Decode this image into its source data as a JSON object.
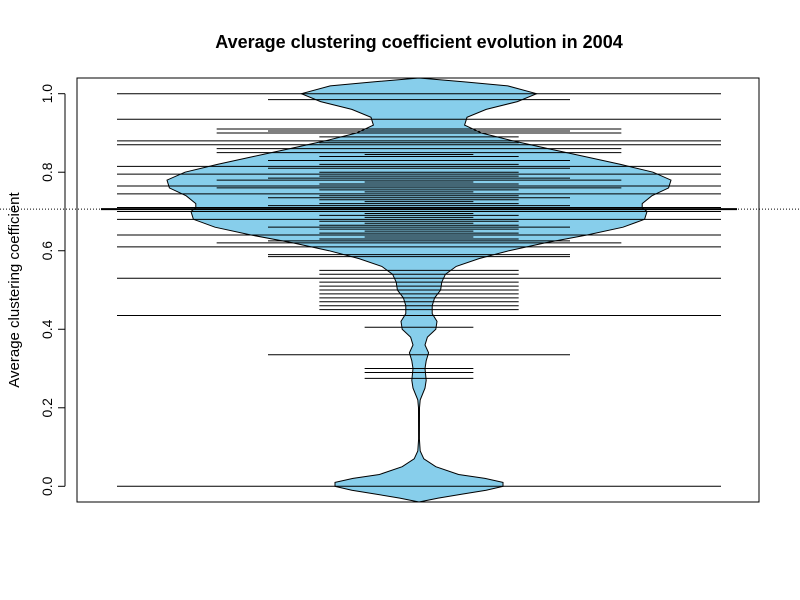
{
  "chart_data": {
    "type": "beanplot",
    "title": "Average clustering coefficient evolution in 2004",
    "xlabel": "",
    "ylabel": "Average clustering coefficient",
    "ylim": [
      -0.04,
      1.04
    ],
    "yticks": [
      0.0,
      0.2,
      0.4,
      0.6,
      0.8,
      1.0
    ],
    "ytick_labels": [
      "0.0",
      "0.2",
      "0.4",
      "0.6",
      "0.8",
      "1.0"
    ],
    "reference_line": 0.706,
    "fill_color": "#87CEEB",
    "outline_color": "#000000",
    "density_profile": [
      {
        "y": -0.04,
        "w": 0.0
      },
      {
        "y": -0.03,
        "w": 0.16
      },
      {
        "y": -0.02,
        "w": 0.36
      },
      {
        "y": -0.01,
        "w": 0.56
      },
      {
        "y": 0.0,
        "w": 0.7
      },
      {
        "y": 0.01,
        "w": 0.7
      },
      {
        "y": 0.02,
        "w": 0.55
      },
      {
        "y": 0.03,
        "w": 0.33
      },
      {
        "y": 0.05,
        "w": 0.14
      },
      {
        "y": 0.07,
        "w": 0.04
      },
      {
        "y": 0.09,
        "w": 0.01
      },
      {
        "y": 0.12,
        "w": 0.003
      },
      {
        "y": 0.2,
        "w": 0.004
      },
      {
        "y": 0.22,
        "w": 0.01
      },
      {
        "y": 0.25,
        "w": 0.05
      },
      {
        "y": 0.27,
        "w": 0.06
      },
      {
        "y": 0.3,
        "w": 0.05
      },
      {
        "y": 0.32,
        "w": 0.06
      },
      {
        "y": 0.34,
        "w": 0.08
      },
      {
        "y": 0.36,
        "w": 0.05
      },
      {
        "y": 0.38,
        "w": 0.07
      },
      {
        "y": 0.4,
        "w": 0.14
      },
      {
        "y": 0.42,
        "w": 0.15
      },
      {
        "y": 0.44,
        "w": 0.11
      },
      {
        "y": 0.46,
        "w": 0.11
      },
      {
        "y": 0.48,
        "w": 0.13
      },
      {
        "y": 0.5,
        "w": 0.18
      },
      {
        "y": 0.52,
        "w": 0.19
      },
      {
        "y": 0.54,
        "w": 0.22
      },
      {
        "y": 0.56,
        "w": 0.31
      },
      {
        "y": 0.58,
        "w": 0.5
      },
      {
        "y": 0.6,
        "w": 0.75
      },
      {
        "y": 0.62,
        "w": 1.05
      },
      {
        "y": 0.64,
        "w": 1.4
      },
      {
        "y": 0.66,
        "w": 1.7
      },
      {
        "y": 0.68,
        "w": 1.88
      },
      {
        "y": 0.7,
        "w": 1.9
      },
      {
        "y": 0.71,
        "w": 1.86
      },
      {
        "y": 0.72,
        "w": 1.86
      },
      {
        "y": 0.74,
        "w": 1.94
      },
      {
        "y": 0.76,
        "w": 2.08
      },
      {
        "y": 0.78,
        "w": 2.1
      },
      {
        "y": 0.8,
        "w": 1.95
      },
      {
        "y": 0.82,
        "w": 1.68
      },
      {
        "y": 0.84,
        "w": 1.38
      },
      {
        "y": 0.86,
        "w": 1.08
      },
      {
        "y": 0.88,
        "w": 0.78
      },
      {
        "y": 0.9,
        "w": 0.52
      },
      {
        "y": 0.92,
        "w": 0.38
      },
      {
        "y": 0.94,
        "w": 0.4
      },
      {
        "y": 0.96,
        "w": 0.56
      },
      {
        "y": 0.98,
        "w": 0.82
      },
      {
        "y": 1.0,
        "w": 0.98
      },
      {
        "y": 1.02,
        "w": 0.74
      },
      {
        "y": 1.03,
        "w": 0.38
      },
      {
        "y": 1.04,
        "w": 0.0
      }
    ],
    "observations": [
      0.0,
      0.275,
      0.29,
      0.3,
      0.335,
      0.405,
      0.435,
      0.45,
      0.46,
      0.47,
      0.48,
      0.49,
      0.5,
      0.51,
      0.52,
      0.53,
      0.54,
      0.55,
      0.585,
      0.59,
      0.61,
      0.62,
      0.625,
      0.63,
      0.635,
      0.64,
      0.645,
      0.65,
      0.655,
      0.66,
      0.665,
      0.67,
      0.675,
      0.68,
      0.685,
      0.69,
      0.695,
      0.7,
      0.705,
      0.71,
      0.715,
      0.72,
      0.725,
      0.73,
      0.735,
      0.74,
      0.745,
      0.75,
      0.755,
      0.76,
      0.765,
      0.77,
      0.775,
      0.78,
      0.785,
      0.79,
      0.795,
      0.8,
      0.81,
      0.815,
      0.82,
      0.83,
      0.84,
      0.845,
      0.85,
      0.86,
      0.87,
      0.875,
      0.88,
      0.89,
      0.9,
      0.905,
      0.91,
      0.935,
      0.985,
      1.0
    ],
    "observation_spans": [
      {
        "y": 0.0,
        "half_width": 1.0
      },
      {
        "y": 0.275,
        "half_width": 0.18
      },
      {
        "y": 0.29,
        "half_width": 0.18
      },
      {
        "y": 0.3,
        "half_width": 0.18
      },
      {
        "y": 0.335,
        "half_width": 0.5
      },
      {
        "y": 0.405,
        "half_width": 0.18
      },
      {
        "y": 0.435,
        "half_width": 1.0
      },
      {
        "y": 0.45,
        "half_width": 0.33
      },
      {
        "y": 0.46,
        "half_width": 0.33
      },
      {
        "y": 0.47,
        "half_width": 0.33
      },
      {
        "y": 0.48,
        "half_width": 0.33
      },
      {
        "y": 0.49,
        "half_width": 0.33
      },
      {
        "y": 0.5,
        "half_width": 0.33
      },
      {
        "y": 0.51,
        "half_width": 0.33
      },
      {
        "y": 0.52,
        "half_width": 0.33
      },
      {
        "y": 0.53,
        "half_width": 1.0
      },
      {
        "y": 0.54,
        "half_width": 0.33
      },
      {
        "y": 0.55,
        "half_width": 0.33
      },
      {
        "y": 0.585,
        "half_width": 0.5
      },
      {
        "y": 0.59,
        "half_width": 0.5
      },
      {
        "y": 0.61,
        "half_width": 1.0
      },
      {
        "y": 0.62,
        "half_width": 0.67
      },
      {
        "y": 0.625,
        "half_width": 0.5
      },
      {
        "y": 0.63,
        "half_width": 0.33
      },
      {
        "y": 0.635,
        "half_width": 0.18
      },
      {
        "y": 0.64,
        "half_width": 1.0
      },
      {
        "y": 0.645,
        "half_width": 0.33
      },
      {
        "y": 0.65,
        "half_width": 0.18
      },
      {
        "y": 0.655,
        "half_width": 0.33
      },
      {
        "y": 0.66,
        "half_width": 0.5
      },
      {
        "y": 0.665,
        "half_width": 0.33
      },
      {
        "y": 0.67,
        "half_width": 0.18
      },
      {
        "y": 0.675,
        "half_width": 0.33
      },
      {
        "y": 0.68,
        "half_width": 1.0
      },
      {
        "y": 0.685,
        "half_width": 0.18
      },
      {
        "y": 0.69,
        "half_width": 0.33
      },
      {
        "y": 0.695,
        "half_width": 0.18
      },
      {
        "y": 0.7,
        "half_width": 1.0
      },
      {
        "y": 0.705,
        "half_width": 1.0
      },
      {
        "y": 0.71,
        "half_width": 1.0
      },
      {
        "y": 0.715,
        "half_width": 0.5
      },
      {
        "y": 0.72,
        "half_width": 0.33
      },
      {
        "y": 0.725,
        "half_width": 0.18
      },
      {
        "y": 0.73,
        "half_width": 0.33
      },
      {
        "y": 0.735,
        "half_width": 0.5
      },
      {
        "y": 0.74,
        "half_width": 0.33
      },
      {
        "y": 0.745,
        "half_width": 1.0
      },
      {
        "y": 0.75,
        "half_width": 0.18
      },
      {
        "y": 0.755,
        "half_width": 0.33
      },
      {
        "y": 0.76,
        "half_width": 0.67
      },
      {
        "y": 0.765,
        "half_width": 1.0
      },
      {
        "y": 0.77,
        "half_width": 0.33
      },
      {
        "y": 0.775,
        "half_width": 0.18
      },
      {
        "y": 0.78,
        "half_width": 0.67
      },
      {
        "y": 0.785,
        "half_width": 0.5
      },
      {
        "y": 0.79,
        "half_width": 0.33
      },
      {
        "y": 0.795,
        "half_width": 1.0
      },
      {
        "y": 0.8,
        "half_width": 0.33
      },
      {
        "y": 0.81,
        "half_width": 0.5
      },
      {
        "y": 0.815,
        "half_width": 1.0
      },
      {
        "y": 0.82,
        "half_width": 0.33
      },
      {
        "y": 0.83,
        "half_width": 0.5
      },
      {
        "y": 0.84,
        "half_width": 0.33
      },
      {
        "y": 0.845,
        "half_width": 0.18
      },
      {
        "y": 0.85,
        "half_width": 0.67
      },
      {
        "y": 0.86,
        "half_width": 0.67
      },
      {
        "y": 0.87,
        "half_width": 1.0
      },
      {
        "y": 0.875,
        "half_width": 0.33
      },
      {
        "y": 0.88,
        "half_width": 1.0
      },
      {
        "y": 0.89,
        "half_width": 0.33
      },
      {
        "y": 0.9,
        "half_width": 0.67
      },
      {
        "y": 0.905,
        "half_width": 0.5
      },
      {
        "y": 0.91,
        "half_width": 0.67
      },
      {
        "y": 0.935,
        "half_width": 1.0
      },
      {
        "y": 0.985,
        "half_width": 0.5
      },
      {
        "y": 1.0,
        "half_width": 1.0
      }
    ],
    "grid": false,
    "legend": "none"
  }
}
